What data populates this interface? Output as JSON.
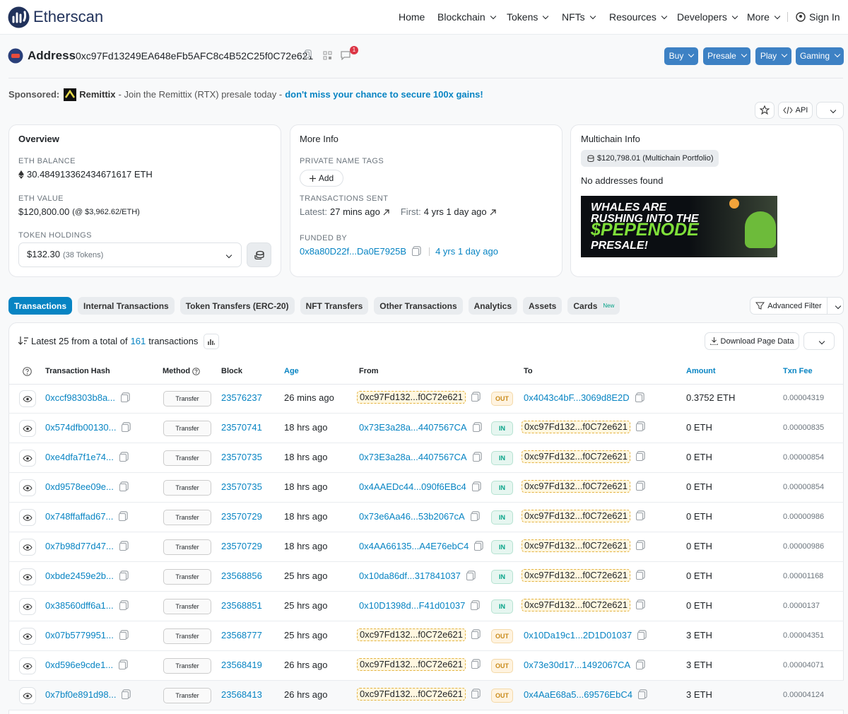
{
  "nav": {
    "logo": "Etherscan",
    "items": [
      "Home",
      "Blockchain",
      "Tokens",
      "NFTs",
      "Resources",
      "Developers",
      "More"
    ],
    "sign_in": "Sign In"
  },
  "address": {
    "label": "Address",
    "hash": "0xc97Fd13249EA648eFb5AFC8c4B52C25f0C72e621",
    "badge": "1",
    "buttons": [
      "Buy",
      "Presale",
      "Play",
      "Gaming"
    ]
  },
  "sponsored": {
    "label": "Sponsored:",
    "name": "Remittix",
    "text": "- Join the Remittix (RTX) presale today -",
    "link": "don't miss your chance to secure 100x gains!"
  },
  "tools": {
    "api": "API"
  },
  "overview": {
    "title": "Overview",
    "eth_balance_label": "ETH BALANCE",
    "eth_balance": "30.484913362434671617 ETH",
    "eth_value_label": "ETH VALUE",
    "eth_value": "$120,800.00",
    "eth_price": "(@ $3,962.62/ETH)",
    "token_label": "TOKEN HOLDINGS",
    "token_value": "$132.30",
    "token_count": "(38 Tokens)"
  },
  "more_info": {
    "title": "More Info",
    "tags_label": "PRIVATE NAME TAGS",
    "add": "Add",
    "sent_label": "TRANSACTIONS SENT",
    "latest_label": "Latest:",
    "latest": "27 mins ago",
    "first_label": "First:",
    "first": "4 yrs 1 day ago",
    "funded_label": "FUNDED BY",
    "funded_addr": "0x8a80D22f...Da0E7925B",
    "funded_age": "4 yrs 1 day ago"
  },
  "multichain": {
    "title": "Multichain Info",
    "portfolio": "$120,798.01 (Multichain Portfolio)",
    "none": "No addresses found",
    "ad": [
      "WHALES ARE",
      "RUSHING INTO THE",
      "$PEPENODE",
      "PRESALE!"
    ]
  },
  "tabs": {
    "items": [
      "Transactions",
      "Internal Transactions",
      "Token Transfers (ERC-20)",
      "NFT Transfers",
      "Other Transactions",
      "Analytics",
      "Assets",
      "Cards"
    ],
    "new": "New",
    "advanced": "Advanced Filter"
  },
  "table": {
    "summary_prefix": "Latest 25 from a total of",
    "total": "161",
    "summary_suffix": "transactions",
    "download": "Download Page Data",
    "headers": [
      "Transaction Hash",
      "Method",
      "Block",
      "Age",
      "From",
      "To",
      "Amount",
      "Txn Fee"
    ],
    "rows": [
      [
        "0xccf98303b8a...",
        "Transfer",
        "23576237",
        "26 mins ago",
        "0xc97Fd132...f0C72e621",
        "OUT",
        "0x4043c4bF...3069d8E2D",
        "0.3752 ETH",
        "0.00004319"
      ],
      [
        "0x574dfb00130...",
        "Transfer",
        "23570741",
        "18 hrs ago",
        "0x73E3a28a...4407567CA",
        "IN",
        "0xc97Fd132...f0C72e621",
        "0 ETH",
        "0.00000835"
      ],
      [
        "0xe4dfa7f1e74...",
        "Transfer",
        "23570735",
        "18 hrs ago",
        "0x73E3a28a...4407567CA",
        "IN",
        "0xc97Fd132...f0C72e621",
        "0 ETH",
        "0.00000854"
      ],
      [
        "0xd9578ee09e...",
        "Transfer",
        "23570735",
        "18 hrs ago",
        "0x4AAEDc44...090f6EBc4",
        "IN",
        "0xc97Fd132...f0C72e621",
        "0 ETH",
        "0.00000854"
      ],
      [
        "0x748ffaffad67...",
        "Transfer",
        "23570729",
        "18 hrs ago",
        "0x73e6Aa46...53b2067cA",
        "IN",
        "0xc97Fd132...f0C72e621",
        "0 ETH",
        "0.00000986"
      ],
      [
        "0x7b98d77d47...",
        "Transfer",
        "23570729",
        "18 hrs ago",
        "0x4AA66135...A4E76ebC4",
        "IN",
        "0xc97Fd132...f0C72e621",
        "0 ETH",
        "0.00000986"
      ],
      [
        "0xbde2459e2b...",
        "Transfer",
        "23568856",
        "25 hrs ago",
        "0x10da86df...317841037",
        "IN",
        "0xc97Fd132...f0C72e621",
        "0 ETH",
        "0.00001168"
      ],
      [
        "0x38560dff6a1...",
        "Transfer",
        "23568851",
        "25 hrs ago",
        "0x10D1398d...F41d01037",
        "IN",
        "0xc97Fd132...f0C72e621",
        "0 ETH",
        "0.0000137"
      ],
      [
        "0x07b5779951...",
        "Transfer",
        "23568777",
        "25 hrs ago",
        "0xc97Fd132...f0C72e621",
        "OUT",
        "0x10Da19c1...2D1D01037",
        "3 ETH",
        "0.00004351"
      ],
      [
        "0xd596e9cde1...",
        "Transfer",
        "23568419",
        "26 hrs ago",
        "0xc97Fd132...f0C72e621",
        "OUT",
        "0x73e30d17...1492067CA",
        "3 ETH",
        "0.00004071"
      ],
      [
        "0x7bf0e891d98...",
        "Transfer",
        "23568413",
        "26 hrs ago",
        "0xc97Fd132...f0C72e621",
        "OUT",
        "0x4AaE68a5...69576EbC4",
        "3 ETH",
        "0.00004124"
      ]
    ]
  }
}
